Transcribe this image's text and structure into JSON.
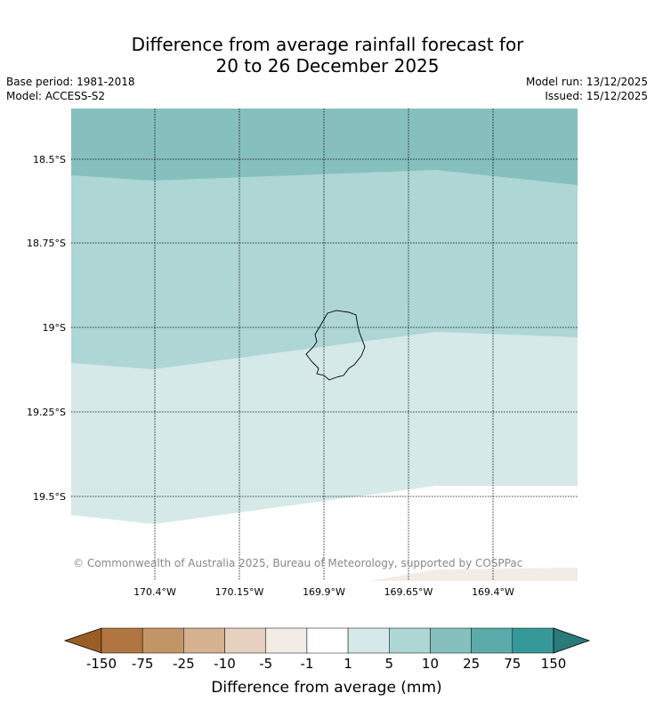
{
  "title": {
    "line1": "Difference from average rainfall forecast for",
    "line2": "20 to 26 December 2025"
  },
  "meta": {
    "base_period": "Base period: 1981-2018",
    "model": "Model: ACCESS-S2",
    "model_run": "Model run: 13/12/2025",
    "issued": "Issued: 15/12/2025"
  },
  "map": {
    "copyright": "© Commonwealth of Australia 2025, Bureau of Meteorology, supported by COSPPac",
    "lat_labels": [
      "18.5°S",
      "18.75°S",
      "19°S",
      "19.25°S",
      "19.5°S"
    ],
    "lon_labels": [
      "170.4°W",
      "170.15°W",
      "169.9°W",
      "169.65°W",
      "169.4°W"
    ],
    "colors": {
      "band_25_75": "#85c0bf",
      "band_10_25": "#add6d5",
      "band_1_5": "#d5e9e8",
      "band_neg5_neg1": "#f2ece7"
    }
  },
  "legend": {
    "label": "Difference from average (mm)",
    "ticks": [
      "-150",
      "-75",
      "-25",
      "-10",
      "-5",
      "-1",
      "1",
      "5",
      "10",
      "25",
      "75",
      "150"
    ],
    "colors": [
      "#9a5e25",
      "#b07540",
      "#c29567",
      "#d6b291",
      "#e6d0bf",
      "#f2ece7",
      "#ffffff",
      "#d5e9e8",
      "#add6d5",
      "#85c0bf",
      "#5babaa",
      "#35999a",
      "#2a7a79"
    ]
  }
}
